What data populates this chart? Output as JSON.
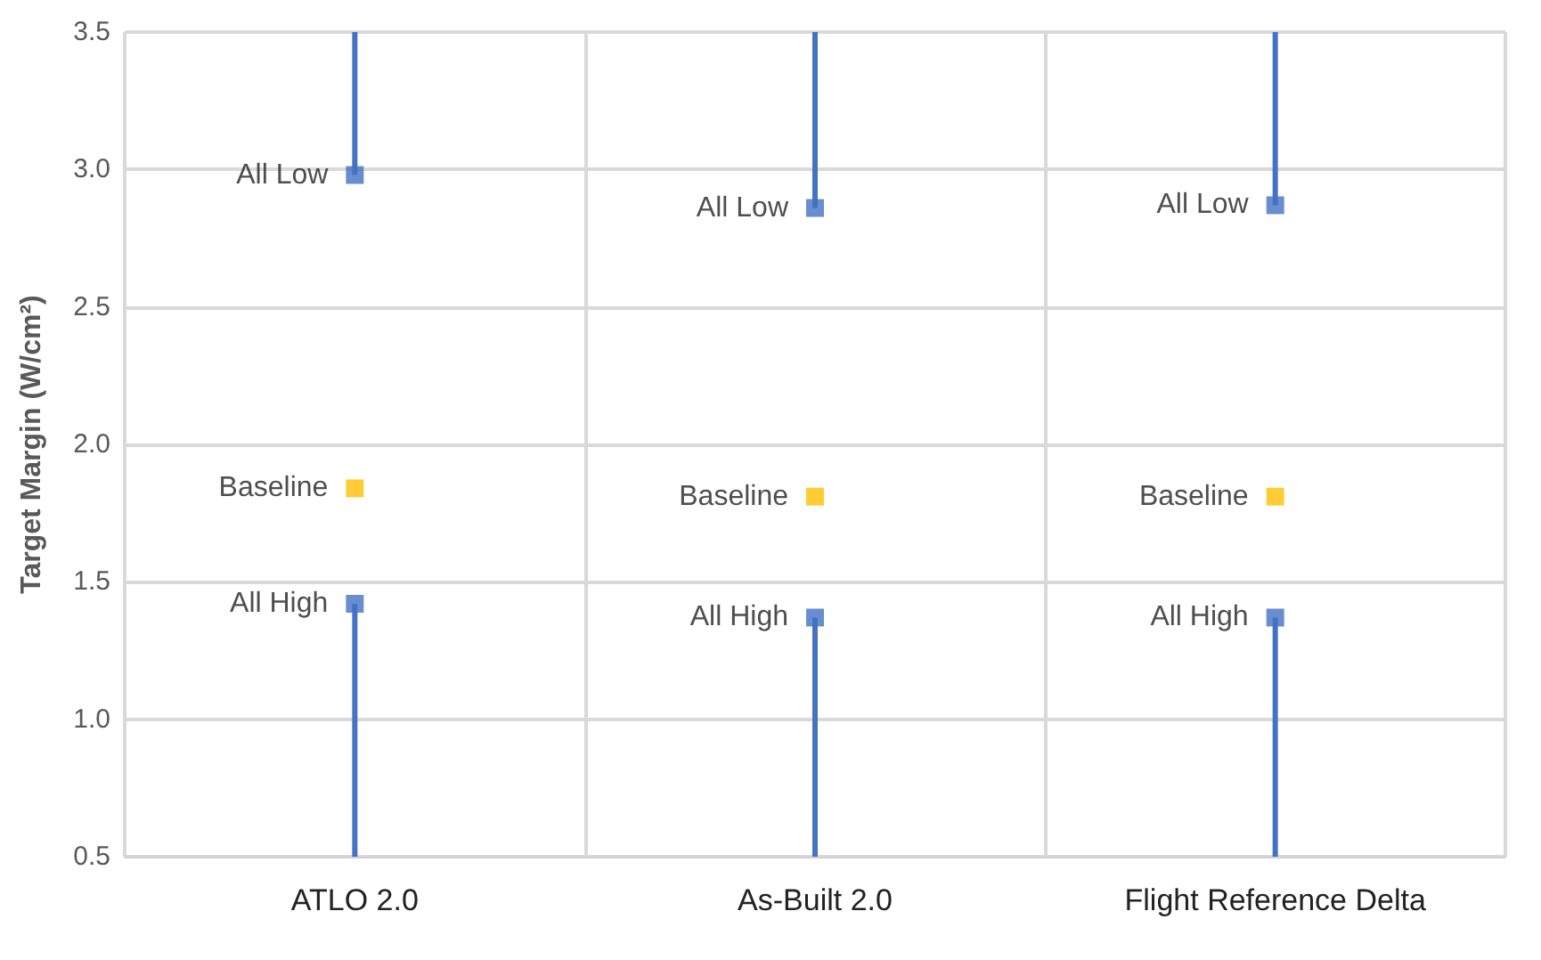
{
  "chart_data": {
    "type": "scatter",
    "ylabel": "Target Margin (W/cm²)",
    "categories": [
      "ATLO 2.0",
      "As-Built 2.0",
      "Flight Reference Delta"
    ],
    "series": [
      {
        "name": "All Low",
        "color": "#4472c4",
        "values": [
          2.98,
          2.86,
          2.87
        ],
        "errors": [
          [
            2.98,
            3.5
          ],
          [
            2.86,
            3.5
          ],
          [
            2.87,
            3.5
          ]
        ]
      },
      {
        "name": "Baseline",
        "color": "#ffc000",
        "values": [
          1.84,
          1.81,
          1.81
        ]
      },
      {
        "name": "All High",
        "color": "#4472c4",
        "values": [
          1.42,
          1.37,
          1.37
        ],
        "errors": [
          [
            0.5,
            1.42
          ],
          [
            0.5,
            1.37
          ],
          [
            0.5,
            1.37
          ]
        ]
      }
    ],
    "ylim": [
      0.5,
      3.5
    ],
    "yticks": [
      0.5,
      {
        "value": 1,
        "label": "1.0"
      },
      1.5,
      {
        "value": 2,
        "label": "2.0"
      },
      2.5,
      {
        "value": 3,
        "label": "3.0"
      },
      3.5
    ],
    "grid": true,
    "legend": false,
    "marker": "square"
  }
}
